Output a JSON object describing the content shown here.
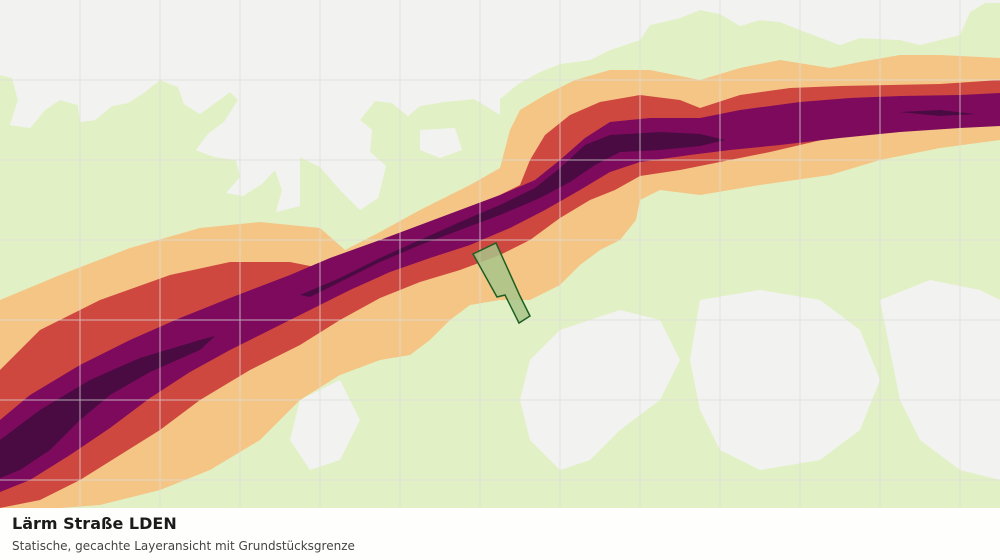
{
  "map": {
    "title": "Lärm Straße LDEN",
    "subtitle": "Statische, gecachte Layeransicht mit Grundstücksgrenze",
    "colors": {
      "background": "#f2f3f1",
      "grid": "#dcdedb",
      "zone_lowest": "#e2f0c5",
      "zone_low": "#f4c585",
      "zone_mid": "#cf4840",
      "zone_high": "#7e0a5d",
      "zone_highest": "#4a0a42",
      "parcel_fill": "#a8c48a",
      "parcel_stroke": "#1f5e22"
    },
    "layers": [
      "zone_lowest",
      "zone_low",
      "zone_mid",
      "zone_high",
      "zone_highest",
      "parcel"
    ]
  }
}
